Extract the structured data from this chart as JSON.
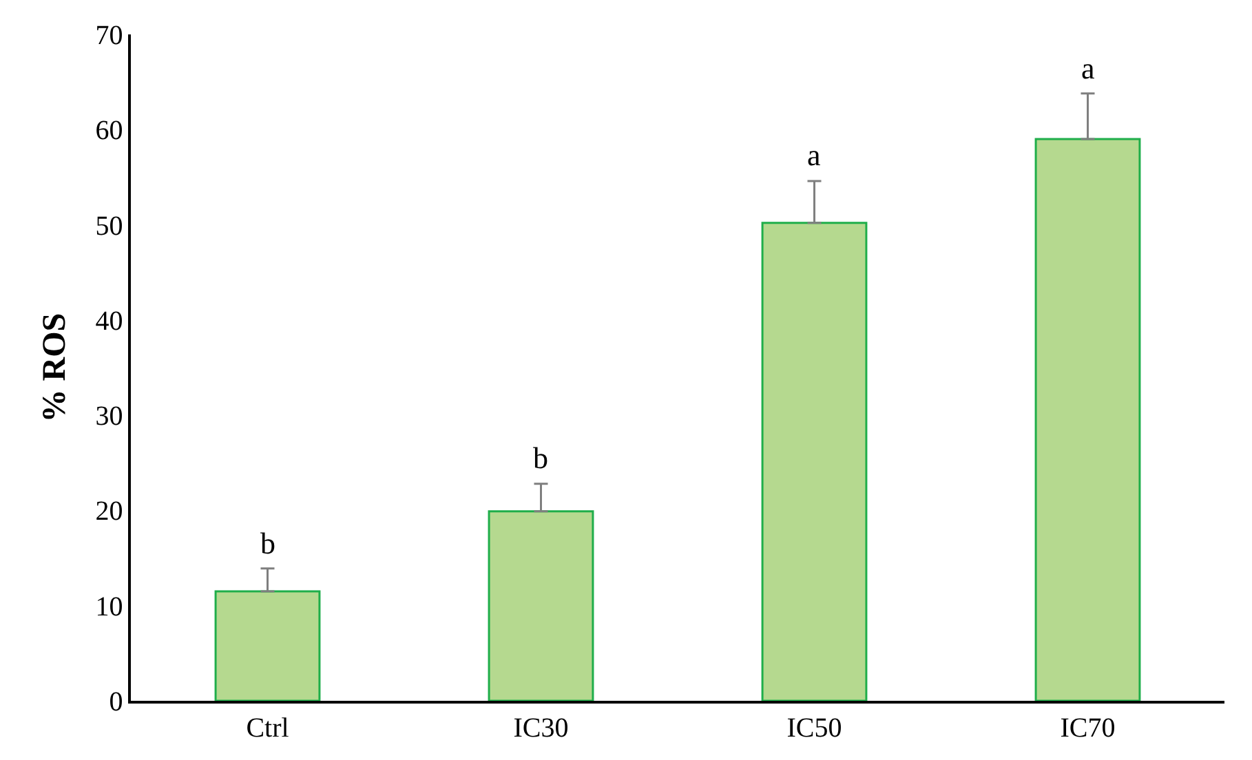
{
  "chart_data": {
    "type": "bar",
    "ylabel": "% ROS",
    "categories": [
      "Ctrl",
      "IC30",
      "IC50",
      "IC70"
    ],
    "values": [
      11.5,
      19.9,
      50.2,
      59.0
    ],
    "errors": [
      [
        11.5,
        13.9
      ],
      [
        19.9,
        22.8
      ],
      [
        50.2,
        54.6
      ],
      [
        59.0,
        63.8
      ]
    ],
    "color": "#b5d98f",
    "ylim": [
      0,
      70
    ],
    "yticks": [
      0,
      10,
      20,
      30,
      40,
      50,
      60,
      70
    ],
    "annotations": [
      "b",
      "b",
      "a",
      "a"
    ]
  }
}
